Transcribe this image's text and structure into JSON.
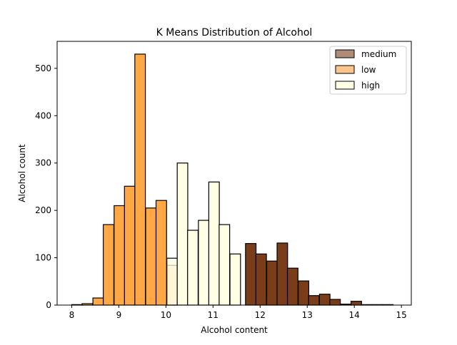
{
  "chart_data": {
    "type": "bar",
    "title": "K Means Distribution of Alcohol",
    "xlabel": "Alcohol content",
    "ylabel": "Alcohol count",
    "xlim": [
      7.69,
      15.21
    ],
    "ylim": [
      0,
      557
    ],
    "xticks": [
      "8",
      "9",
      "10",
      "11",
      "12",
      "13",
      "14",
      "15"
    ],
    "yticks": [
      "0",
      "100",
      "200",
      "300",
      "400",
      "500"
    ],
    "bin_width": 0.2235,
    "grid": false,
    "legend_position": "top-right",
    "series": [
      {
        "name": "medium",
        "color": "#7a3d1a",
        "legend_color": "#b08b77",
        "bins": [
          {
            "start": 11.69,
            "count": 130
          },
          {
            "start": 11.91,
            "count": 108
          },
          {
            "start": 12.14,
            "count": 93
          },
          {
            "start": 12.36,
            "count": 131
          },
          {
            "start": 12.58,
            "count": 78
          },
          {
            "start": 12.81,
            "count": 51
          },
          {
            "start": 13.03,
            "count": 20
          },
          {
            "start": 13.26,
            "count": 23
          },
          {
            "start": 13.48,
            "count": 12
          },
          {
            "start": 13.7,
            "count": 2
          },
          {
            "start": 13.93,
            "count": 8
          },
          {
            "start": 14.15,
            "count": 1
          },
          {
            "start": 14.38,
            "count": 1
          },
          {
            "start": 14.6,
            "count": 1
          }
        ]
      },
      {
        "name": "low",
        "color": "#ffa845",
        "legend_color": "#fdc58c",
        "bins": [
          {
            "start": 8.0,
            "count": 1
          },
          {
            "start": 8.22,
            "count": 3
          },
          {
            "start": 8.45,
            "count": 15
          },
          {
            "start": 8.67,
            "count": 170
          },
          {
            "start": 8.9,
            "count": 210
          },
          {
            "start": 9.12,
            "count": 251
          },
          {
            "start": 9.34,
            "count": 530
          },
          {
            "start": 9.57,
            "count": 205
          },
          {
            "start": 9.79,
            "count": 221
          },
          {
            "start": 10.02,
            "count": 84
          }
        ]
      },
      {
        "name": "high",
        "color": "#ffffe5",
        "legend_color": "#ffffe5",
        "bins": [
          {
            "start": 10.02,
            "count": 99
          },
          {
            "start": 10.24,
            "count": 300
          },
          {
            "start": 10.46,
            "count": 158
          },
          {
            "start": 10.69,
            "count": 179
          },
          {
            "start": 10.91,
            "count": 260
          },
          {
            "start": 11.13,
            "count": 170
          },
          {
            "start": 11.36,
            "count": 108
          }
        ]
      }
    ],
    "overlap_colors": {
      "low_high": "#ffdcaa"
    }
  }
}
